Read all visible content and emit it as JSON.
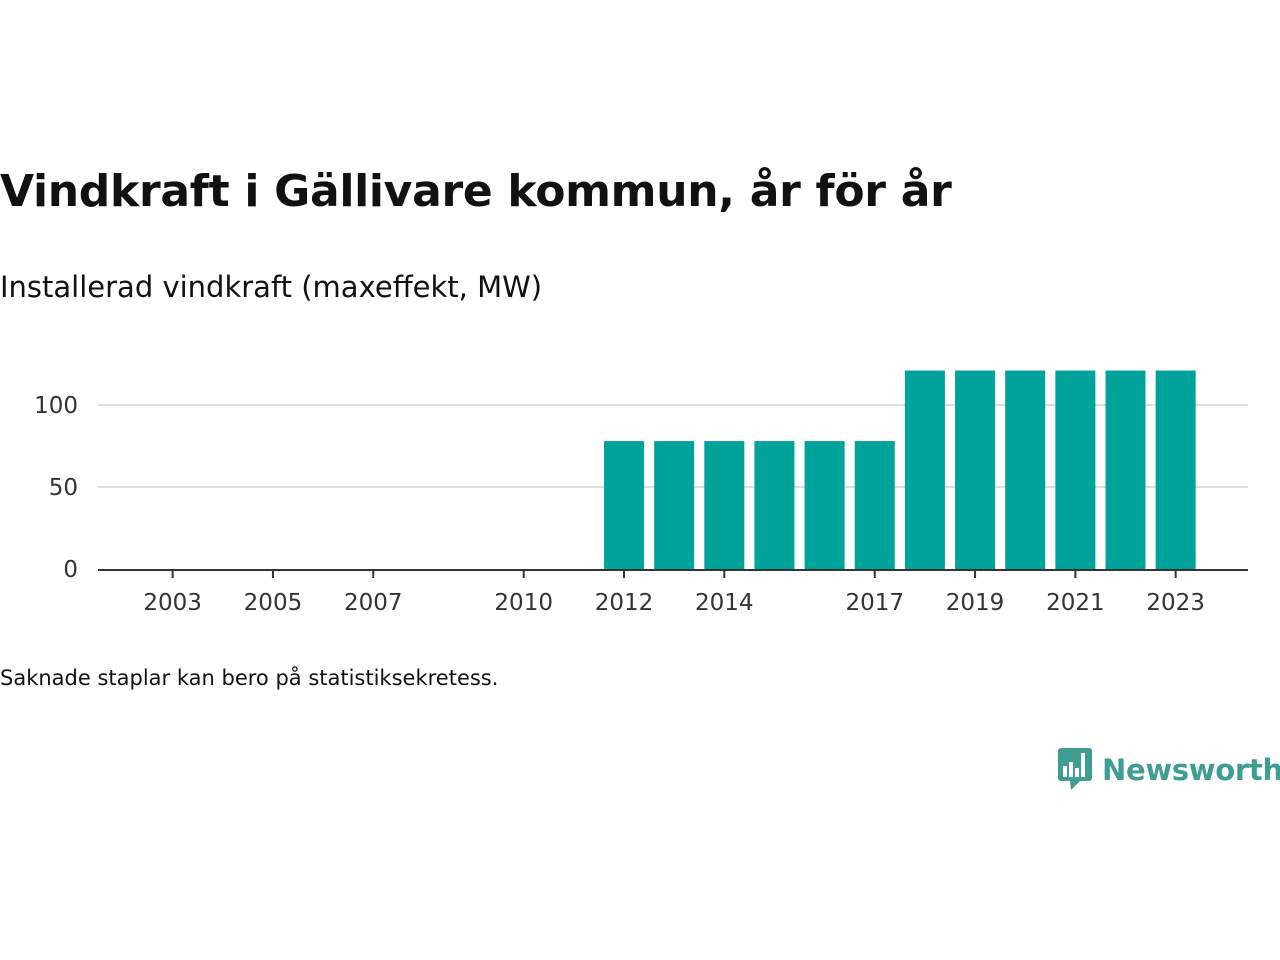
{
  "title": "Vindkraft i Gällivare kommun, år för år",
  "subtitle": "Installerad vindkraft (maxeffekt, MW)",
  "note": "Saknade staplar kan bero på statistiksekretess.",
  "brand": {
    "name": "Newsworthy",
    "icon": "newsworthy-logo-icon",
    "color": "#3f9d94"
  },
  "chart_data": {
    "type": "bar",
    "bar_color": "#00a39a",
    "categories": [
      "2002",
      "2003",
      "2004",
      "2005",
      "2006",
      "2007",
      "2008",
      "2009",
      "2010",
      "2011",
      "2012",
      "2013",
      "2014",
      "2015",
      "2016",
      "2017",
      "2018",
      "2019",
      "2020",
      "2021",
      "2022",
      "2023"
    ],
    "values": [
      null,
      null,
      null,
      null,
      null,
      null,
      null,
      null,
      null,
      null,
      78,
      78,
      78,
      78,
      78,
      78,
      121,
      121,
      121,
      121,
      121,
      121
    ],
    "x_tick_labels": [
      "2003",
      "2005",
      "2007",
      "2010",
      "2012",
      "2014",
      "2017",
      "2019",
      "2021",
      "2023"
    ],
    "y_ticks": [
      0,
      50,
      100
    ],
    "ylim": [
      0,
      121
    ],
    "grid": true,
    "xlabel": "",
    "ylabel": ""
  }
}
